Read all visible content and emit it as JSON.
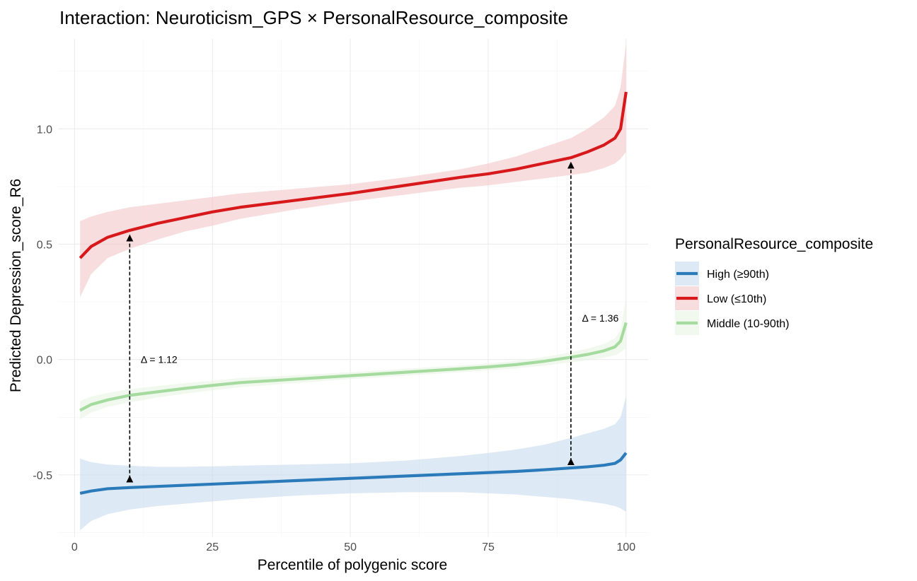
{
  "chart_data": {
    "type": "line",
    "title": "Interaction: Neuroticism_GPS × PersonalResource_composite",
    "xlabel": "Percentile of polygenic score",
    "ylabel": "Predicted Depression_score_R6",
    "xlim": [
      -3,
      104
    ],
    "ylim": [
      -0.77,
      1.39
    ],
    "x_ticks": [
      0,
      25,
      50,
      75,
      100
    ],
    "x_tick_labels": [
      "0",
      "25",
      "50",
      "75",
      "100"
    ],
    "y_ticks": [
      -0.5,
      0.0,
      0.5,
      1.0
    ],
    "y_tick_labels": [
      "-0.5",
      "0.0",
      "0.5",
      "1.0"
    ],
    "grid": true,
    "legend": {
      "title": "PersonalResource_composite",
      "position": "right",
      "entries": [
        "High (≥90th)",
        "Low (≤10th)",
        "Middle (10-90th)"
      ]
    },
    "series": [
      {
        "name": "High (≥90th)",
        "color": "#2b7bba",
        "band_color": "#c6dbef",
        "x": [
          1,
          3,
          6,
          10,
          15,
          20,
          25,
          30,
          40,
          50,
          60,
          70,
          75,
          80,
          85,
          90,
          93,
          96,
          98,
          99,
          100
        ],
        "values": [
          -0.58,
          -0.57,
          -0.56,
          -0.555,
          -0.55,
          -0.545,
          -0.54,
          -0.535,
          -0.525,
          -0.515,
          -0.505,
          -0.495,
          -0.49,
          -0.485,
          -0.478,
          -0.47,
          -0.465,
          -0.458,
          -0.45,
          -0.435,
          -0.405
        ],
        "lower": [
          -0.74,
          -0.7,
          -0.67,
          -0.65,
          -0.635,
          -0.625,
          -0.615,
          -0.605,
          -0.59,
          -0.58,
          -0.575,
          -0.575,
          -0.58,
          -0.585,
          -0.595,
          -0.605,
          -0.615,
          -0.625,
          -0.635,
          -0.645,
          -0.66
        ],
        "upper": [
          -0.43,
          -0.445,
          -0.455,
          -0.46,
          -0.465,
          -0.465,
          -0.463,
          -0.46,
          -0.455,
          -0.45,
          -0.438,
          -0.418,
          -0.405,
          -0.39,
          -0.37,
          -0.34,
          -0.32,
          -0.3,
          -0.28,
          -0.25,
          -0.16
        ]
      },
      {
        "name": "Low (≤10th)",
        "color": "#d7191c",
        "band_color": "#f4c7c8",
        "x": [
          1,
          3,
          6,
          10,
          15,
          20,
          25,
          30,
          40,
          50,
          60,
          70,
          75,
          80,
          85,
          90,
          93,
          96,
          98,
          99,
          100
        ],
        "values": [
          0.44,
          0.49,
          0.53,
          0.56,
          0.59,
          0.615,
          0.64,
          0.66,
          0.69,
          0.72,
          0.755,
          0.79,
          0.805,
          0.825,
          0.85,
          0.875,
          0.9,
          0.93,
          0.96,
          1.0,
          1.16
        ],
        "lower": [
          0.27,
          0.37,
          0.44,
          0.48,
          0.52,
          0.555,
          0.58,
          0.61,
          0.65,
          0.685,
          0.715,
          0.745,
          0.755,
          0.77,
          0.785,
          0.8,
          0.81,
          0.83,
          0.85,
          0.87,
          0.9
        ],
        "upper": [
          0.6,
          0.62,
          0.64,
          0.66,
          0.675,
          0.69,
          0.705,
          0.72,
          0.74,
          0.76,
          0.79,
          0.825,
          0.85,
          0.88,
          0.92,
          0.96,
          1.0,
          1.05,
          1.1,
          1.18,
          1.37
        ]
      },
      {
        "name": "Middle (10-90th)",
        "color": "#a6dba0",
        "band_color": "#e7f5e4",
        "x": [
          1,
          3,
          6,
          10,
          15,
          20,
          25,
          30,
          40,
          50,
          60,
          70,
          75,
          80,
          85,
          90,
          93,
          96,
          98,
          99,
          100
        ],
        "values": [
          -0.22,
          -0.195,
          -0.175,
          -0.155,
          -0.14,
          -0.125,
          -0.112,
          -0.1,
          -0.085,
          -0.07,
          -0.055,
          -0.04,
          -0.032,
          -0.022,
          -0.008,
          0.01,
          0.022,
          0.038,
          0.055,
          0.08,
          0.16
        ],
        "lower": [
          -0.26,
          -0.23,
          -0.205,
          -0.185,
          -0.165,
          -0.148,
          -0.133,
          -0.12,
          -0.102,
          -0.085,
          -0.07,
          -0.055,
          -0.047,
          -0.038,
          -0.027,
          -0.012,
          -0.003,
          0.008,
          0.018,
          0.03,
          0.05
        ],
        "upper": [
          -0.18,
          -0.16,
          -0.145,
          -0.128,
          -0.115,
          -0.102,
          -0.092,
          -0.08,
          -0.068,
          -0.055,
          -0.04,
          -0.025,
          -0.017,
          -0.006,
          0.01,
          0.032,
          0.047,
          0.068,
          0.092,
          0.13,
          0.27
        ]
      }
    ],
    "annotations": [
      {
        "text": "Δ = 1.12",
        "x": 12,
        "y": 0.0,
        "arrow_x": 10,
        "arrow_from": 0.555,
        "arrow_to": -0.545
      },
      {
        "text": "Δ = 1.36",
        "x": 92,
        "y": 0.18,
        "arrow_x": 90,
        "arrow_from": 0.87,
        "arrow_to": -0.47
      }
    ]
  }
}
